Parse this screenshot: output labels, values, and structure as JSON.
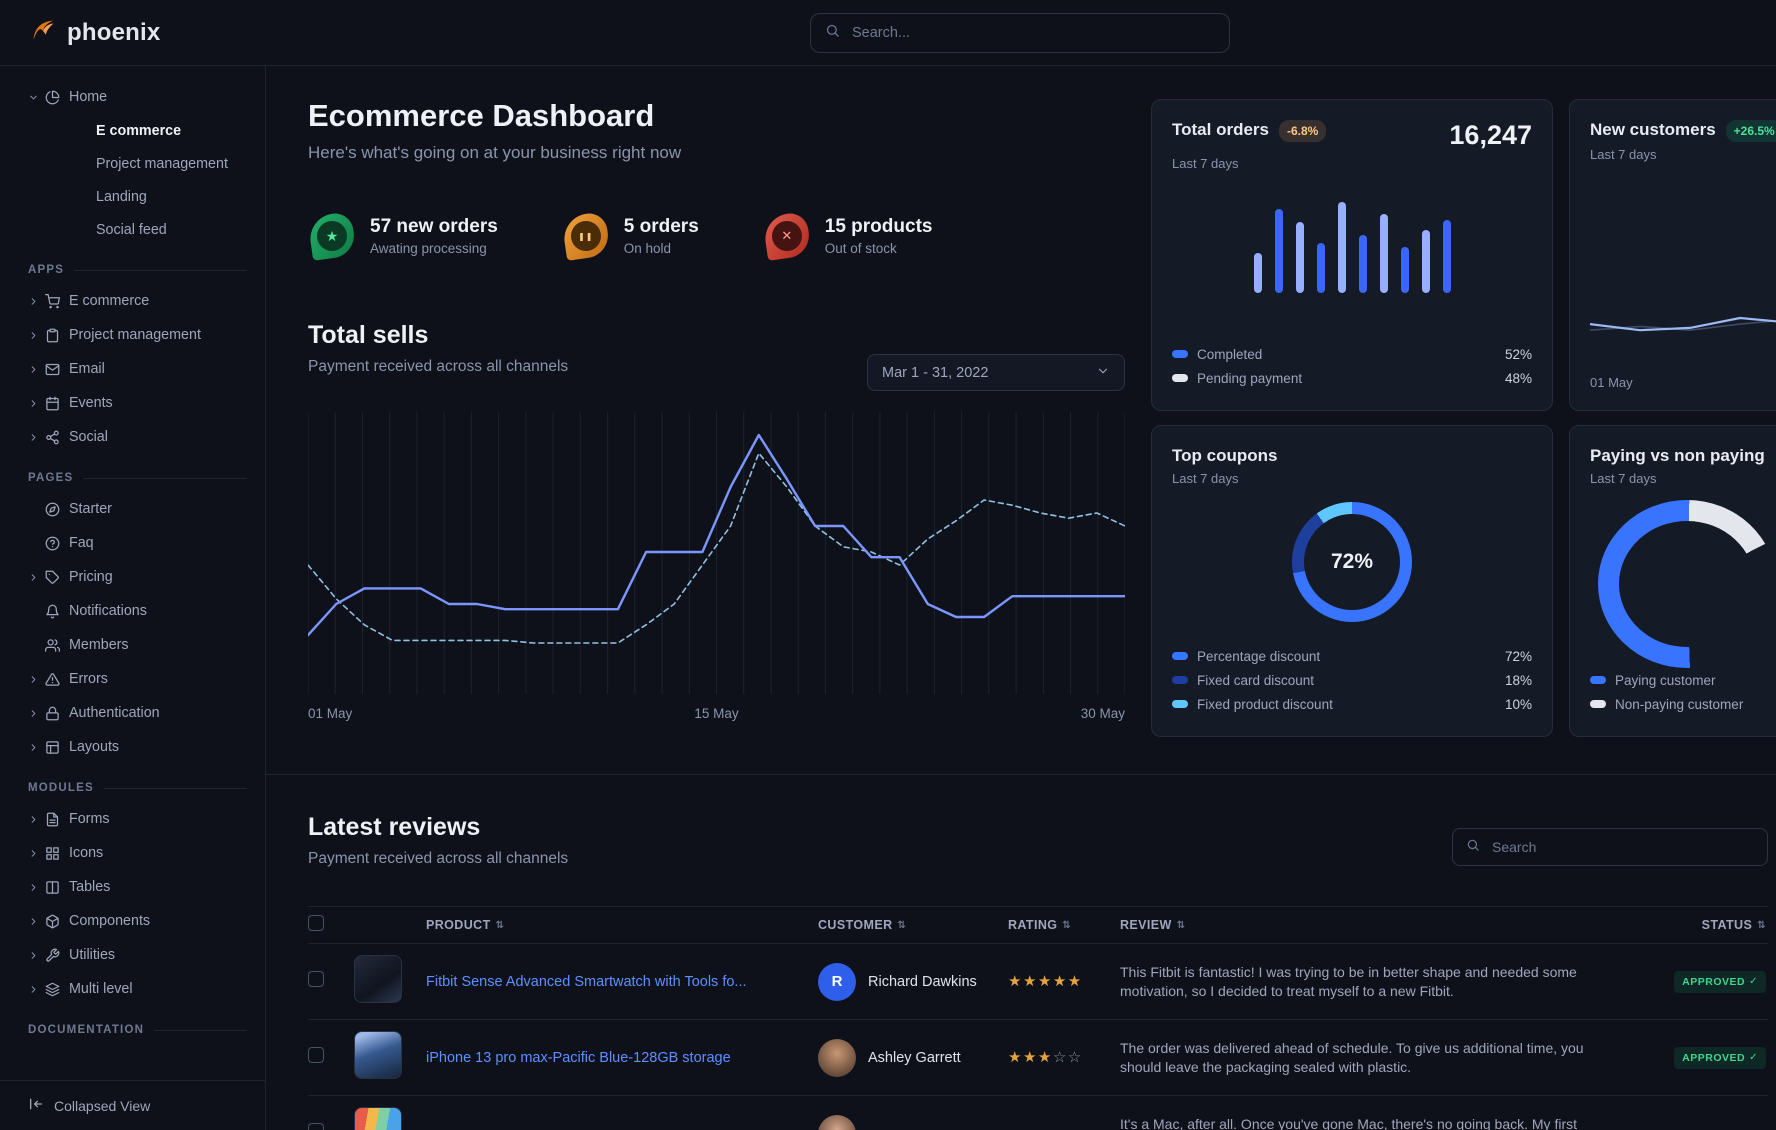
{
  "brand": {
    "name": "phoenix"
  },
  "navbar": {
    "search_placeholder": "Search..."
  },
  "sidebar": {
    "home": {
      "label": "Home",
      "icon": "pie-chart",
      "children": [
        "E commerce",
        "Project management",
        "Landing",
        "Social feed"
      ],
      "active_child": "E commerce"
    },
    "sections": [
      {
        "label": "APPS",
        "items": [
          {
            "label": "E commerce",
            "icon": "shopping-cart",
            "caret": true
          },
          {
            "label": "Project management",
            "icon": "clipboard",
            "caret": true
          },
          {
            "label": "Email",
            "icon": "mail",
            "caret": true
          },
          {
            "label": "Events",
            "icon": "calendar",
            "caret": true
          },
          {
            "label": "Social",
            "icon": "share-2",
            "caret": true
          }
        ]
      },
      {
        "label": "PAGES",
        "items": [
          {
            "label": "Starter",
            "icon": "compass",
            "caret": false
          },
          {
            "label": "Faq",
            "icon": "help-circle",
            "caret": false
          },
          {
            "label": "Pricing",
            "icon": "tag",
            "caret": true
          },
          {
            "label": "Notifications",
            "icon": "bell",
            "caret": false
          },
          {
            "label": "Members",
            "icon": "users",
            "caret": false
          },
          {
            "label": "Errors",
            "icon": "alert-triangle",
            "caret": true
          },
          {
            "label": "Authentication",
            "icon": "lock",
            "caret": true
          },
          {
            "label": "Layouts",
            "icon": "layout",
            "caret": true
          }
        ]
      },
      {
        "label": "MODULES",
        "items": [
          {
            "label": "Forms",
            "icon": "file-text",
            "caret": true
          },
          {
            "label": "Icons",
            "icon": "grid",
            "caret": true
          },
          {
            "label": "Tables",
            "icon": "columns",
            "caret": true
          },
          {
            "label": "Components",
            "icon": "package",
            "caret": true
          },
          {
            "label": "Utilities",
            "icon": "tool",
            "caret": true
          },
          {
            "label": "Multi level",
            "icon": "layers",
            "caret": true
          }
        ]
      },
      {
        "label": "DOCUMENTATION",
        "items": []
      }
    ],
    "collapsed_view": "Collapsed View"
  },
  "header": {
    "title": "Ecommerce Dashboard",
    "subtitle": "Here's what's going on at your business right now"
  },
  "stats": [
    {
      "value": "57 new orders",
      "caption": "Awating processing",
      "icon": "star",
      "color": "green"
    },
    {
      "value": "5 orders",
      "caption": "On hold",
      "icon": "pause",
      "color": "orange"
    },
    {
      "value": "15 products",
      "caption": "Out of stock",
      "icon": "x",
      "color": "red"
    }
  ],
  "total_sells": {
    "title": "Total sells",
    "subtitle": "Payment received across all channels",
    "date_range": "Mar 1 - 31, 2022",
    "x_labels": [
      "01 May",
      "15 May",
      "30 May"
    ]
  },
  "chart_data": [
    {
      "id": "total-sells",
      "type": "line",
      "title": "Total sells",
      "x_labels": [
        "01 May",
        "15 May",
        "30 May"
      ],
      "ylim": [
        0,
        100
      ],
      "grid": "vertical",
      "series": [
        {
          "name": "current period",
          "style": "solid",
          "color": "#7b97ff",
          "values": [
            18,
            30,
            36,
            36,
            36,
            30,
            30,
            28,
            28,
            28,
            28,
            28,
            50,
            50,
            50,
            75,
            95,
            78,
            60,
            60,
            48,
            48,
            30,
            25,
            25,
            33,
            33,
            33,
            33,
            33
          ]
        },
        {
          "name": "previous period",
          "style": "dashed",
          "color": "#8fc1e3",
          "values": [
            45,
            32,
            22,
            16,
            16,
            16,
            16,
            16,
            15,
            15,
            15,
            15,
            22,
            30,
            45,
            60,
            88,
            75,
            60,
            52,
            50,
            45,
            55,
            62,
            70,
            68,
            65,
            63,
            65,
            60
          ]
        }
      ]
    },
    {
      "id": "total-orders-bars",
      "type": "bar",
      "ylim": [
        0,
        100
      ],
      "values": [
        42,
        88,
        74,
        52,
        95,
        60,
        82,
        48,
        66,
        76
      ],
      "colors": [
        "#98aeff",
        "#3a66ff"
      ]
    },
    {
      "id": "new-customers",
      "type": "line",
      "x_label": "01 May",
      "series": [
        {
          "name": "current",
          "color": "#9db8f2",
          "width": 2.2,
          "values": [
            38,
            30,
            33,
            46,
            40,
            64,
            46,
            58
          ]
        },
        {
          "name": "previous",
          "color": "#3d4a63",
          "width": 1.6,
          "values": [
            30,
            35,
            30,
            38,
            44,
            42,
            40,
            50
          ]
        }
      ]
    },
    {
      "id": "top-coupons",
      "type": "donut",
      "center_label": "72%",
      "segments": [
        {
          "label": "Percentage discount",
          "value": 72,
          "color": "#3874ff"
        },
        {
          "label": "Fixed card discount",
          "value": 18,
          "color": "#1f3f9e"
        },
        {
          "label": "Fixed product discount",
          "value": 10,
          "color": "#60c6ff"
        }
      ]
    },
    {
      "id": "paying-gauge",
      "type": "gauge",
      "segments": [
        {
          "label": "Paying customer",
          "value": 75,
          "color": "#3874ff"
        },
        {
          "label": "Non-paying customer",
          "value": 25,
          "color": "#e3e6ed"
        }
      ]
    }
  ],
  "cards": {
    "total_orders": {
      "title": "Total orders",
      "badge": "-6.8%",
      "period": "Last 7 days",
      "value": "16,247",
      "legend": [
        {
          "label": "Completed",
          "value": "52%",
          "color": "#3874ff"
        },
        {
          "label": "Pending payment",
          "value": "48%",
          "color": "#e3e6ed"
        }
      ]
    },
    "new_customers": {
      "title": "New customers",
      "badge": "+26.5%",
      "period": "Last 7 days",
      "x_label": "01 May"
    },
    "top_coupons": {
      "title": "Top coupons",
      "period": "Last 7 days",
      "center_label": "72%",
      "legend": [
        {
          "label": "Percentage discount",
          "value": "72%",
          "color": "#3874ff"
        },
        {
          "label": "Fixed card discount",
          "value": "18%",
          "color": "#1f3f9e"
        },
        {
          "label": "Fixed product discount",
          "value": "10%",
          "color": "#60c6ff"
        }
      ]
    },
    "paying": {
      "title": "Paying vs non paying",
      "period": "Last 7 days",
      "legend": [
        {
          "label": "Paying customer",
          "color": "#3874ff"
        },
        {
          "label": "Non-paying customer",
          "color": "#e3e6ed"
        }
      ]
    }
  },
  "reviews": {
    "title": "Latest reviews",
    "subtitle": "Payment received across all channels",
    "search_placeholder": "Search",
    "columns": [
      "PRODUCT",
      "CUSTOMER",
      "RATING",
      "REVIEW",
      "STATUS"
    ],
    "rows": [
      {
        "product": "Fitbit Sense Advanced Smartwatch with Tools fo...",
        "customer": "Richard Dawkins",
        "avatar": {
          "type": "initial",
          "text": "R",
          "bg": "#2e5eea",
          "fg": "#ffffff"
        },
        "rating": 5,
        "review": "This Fitbit is fantastic! I was trying to be in better shape and needed some motivation, so I decided to treat myself to a new Fitbit.",
        "status": "APPROVED",
        "thumb": "watch"
      },
      {
        "product": "iPhone 13 pro max-Pacific Blue-128GB storage",
        "customer": "Ashley Garrett",
        "avatar": {
          "type": "photo",
          "bg": "#c99873"
        },
        "rating": 3,
        "review": "The order was delivered ahead of schedule. To give us additional time, you should leave the packaging sealed with plastic.",
        "status": "APPROVED",
        "thumb": "phone"
      },
      {
        "product": "",
        "customer": "",
        "avatar": {
          "type": "photo",
          "bg": "#d5a58b"
        },
        "rating": null,
        "review": "It's a Mac, after all. Once you've gone Mac, there's no going back. My first Mac lasted...",
        "status": "",
        "thumb": "laptop"
      }
    ]
  }
}
